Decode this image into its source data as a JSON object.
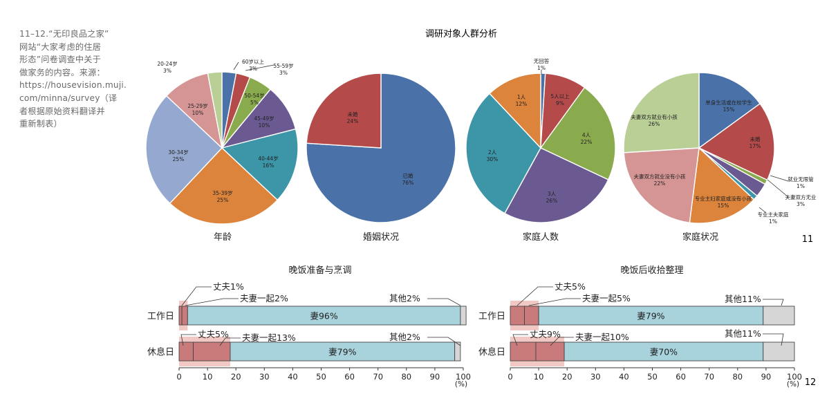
{
  "caption": [
    "11–12.“无印良品之家”",
    "网站“大家考虑的住居",
    "形态”问卷调查中关于",
    "做家务的内容。来源：",
    "https://housevision.muji.",
    "com/minna/survey（译",
    "者根据原始资料翻译并",
    "重新制表）"
  ],
  "figure_numbers": [
    "11",
    "12"
  ],
  "pie_section_title": "调研对象人群分析",
  "chart_data": [
    {
      "type": "pie",
      "title": "年龄",
      "slices": [
        {
          "label": "60岁以上",
          "value": 3,
          "pct": "3%",
          "color": "#4a72a8"
        },
        {
          "label": "55-59岁",
          "value": 3,
          "pct": "3%",
          "color": "#b54a4a"
        },
        {
          "label": "50-54岁",
          "value": 5,
          "pct": "5%",
          "color": "#8aaa4e"
        },
        {
          "label": "45-49岁",
          "value": 10,
          "pct": "10%",
          "color": "#6b5a92"
        },
        {
          "label": "40-44岁",
          "value": 16,
          "pct": "16%",
          "color": "#3d95a8"
        },
        {
          "label": "35-39岁",
          "value": 25,
          "pct": "25%",
          "color": "#dc843c"
        },
        {
          "label": "30-34岁",
          "value": 25,
          "pct": "25%",
          "color": "#95a8cf"
        },
        {
          "label": "25-29岁",
          "value": 10,
          "pct": "10%",
          "color": "#d69595"
        },
        {
          "label": "20-24岁",
          "value": 3,
          "pct": "3%",
          "color": "#b9cf96"
        }
      ]
    },
    {
      "type": "pie",
      "title": "婚姻状况",
      "slices": [
        {
          "label": "已婚",
          "value": 76,
          "pct": "76%",
          "color": "#4a72a8"
        },
        {
          "label": "未婚",
          "value": 24,
          "pct": "24%",
          "color": "#b54a4a"
        }
      ]
    },
    {
      "type": "pie",
      "title": "家庭人数",
      "slices": [
        {
          "label": "无回答",
          "value": 1,
          "pct": "1%",
          "color": "#4a72a8"
        },
        {
          "label": "5人以上",
          "value": 9,
          "pct": "9%",
          "color": "#b54a4a"
        },
        {
          "label": "4人",
          "value": 22,
          "pct": "22%",
          "color": "#8aaa4e"
        },
        {
          "label": "3人",
          "value": 26,
          "pct": "26%",
          "color": "#6b5a92"
        },
        {
          "label": "2人",
          "value": 30,
          "pct": "30%",
          "color": "#3d95a8"
        },
        {
          "label": "1人",
          "value": 12,
          "pct": "12%",
          "color": "#dc843c"
        }
      ]
    },
    {
      "type": "pie",
      "title": "家庭状况",
      "slices": [
        {
          "label": "单身生活或在校学生",
          "value": 15,
          "pct": "15%",
          "color": "#4a72a8"
        },
        {
          "label": "未婚",
          "value": 17,
          "pct": "17%",
          "color": "#b54a4a"
        },
        {
          "label": "就业无限管",
          "value": 1,
          "pct": "1%",
          "color": "#8aaa4e"
        },
        {
          "label": "夫妻双方无业",
          "value": 3,
          "pct": "3%",
          "color": "#6b5a92"
        },
        {
          "label": "专业主夫家庭",
          "value": 1,
          "pct": "1%",
          "color": "#3d95a8"
        },
        {
          "label": "专业主妇家庭或没有小孩",
          "value": 15,
          "pct": "15%",
          "color": "#dc843c"
        },
        {
          "label": "夫妻双方就业没有小孩",
          "value": 22,
          "pct": "22%",
          "color": "#d69595"
        },
        {
          "label": "夫妻双方就业有小孩",
          "value": 26,
          "pct": "26%",
          "color": "#b9cf96"
        }
      ]
    },
    {
      "type": "bar",
      "orientation": "horizontal",
      "stacked": true,
      "title": "晚饭准备与烹调",
      "xlim": [
        0,
        100
      ],
      "unit": "(%)",
      "ticks": [
        0,
        10,
        20,
        30,
        40,
        50,
        60,
        70,
        80,
        90,
        100
      ],
      "categories": [
        "工作日",
        "休息日"
      ],
      "series": [
        {
          "name": "丈夫",
          "values": [
            1,
            5
          ],
          "labels": [
            "丈夫1%",
            "丈夫5%"
          ],
          "color": "#c97a7a"
        },
        {
          "name": "夫妻一起",
          "values": [
            2,
            13
          ],
          "labels": [
            "夫妻一起2%",
            "夫妻一起13%"
          ],
          "color": "#c97a7a"
        },
        {
          "name": "妻",
          "values": [
            96,
            79
          ],
          "labels": [
            "妻96%",
            "妻79%"
          ],
          "color": "#a8d2dc"
        },
        {
          "name": "其他",
          "values": [
            2,
            2
          ],
          "labels": [
            "其他2%",
            "其他2%"
          ],
          "color": "#d6d6d6"
        }
      ]
    },
    {
      "type": "bar",
      "orientation": "horizontal",
      "stacked": true,
      "title": "晚饭后收拾整理",
      "xlim": [
        0,
        100
      ],
      "unit": "(%)",
      "ticks": [
        0,
        10,
        20,
        30,
        40,
        50,
        60,
        70,
        80,
        90,
        100
      ],
      "categories": [
        "工作日",
        "休息日"
      ],
      "series": [
        {
          "name": "丈夫",
          "values": [
            5,
            9
          ],
          "labels": [
            "丈夫5%",
            "丈夫9%"
          ],
          "color": "#c97a7a"
        },
        {
          "name": "夫妻一起",
          "values": [
            5,
            10
          ],
          "labels": [
            "夫妻一起5%",
            "夫妻一起10%"
          ],
          "color": "#c97a7a"
        },
        {
          "name": "妻",
          "values": [
            79,
            70
          ],
          "labels": [
            "妻79%",
            "妻70%"
          ],
          "color": "#a8d2dc"
        },
        {
          "name": "其他",
          "values": [
            11,
            11
          ],
          "labels": [
            "其他11%",
            "其他11%"
          ],
          "color": "#d6d6d6"
        }
      ]
    }
  ]
}
